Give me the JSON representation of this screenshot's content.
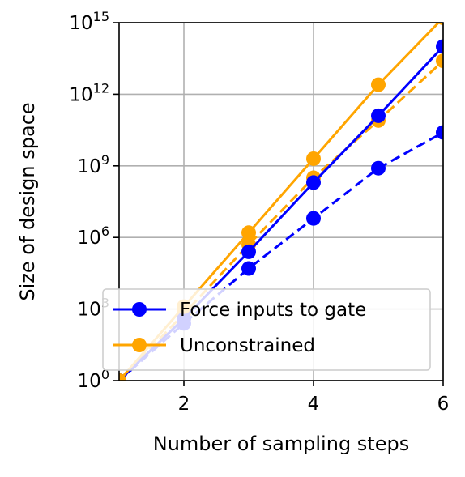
{
  "chart_data": {
    "type": "line",
    "xlabel": "Number of sampling steps",
    "ylabel": "Size of design space",
    "xlim": [
      1,
      6
    ],
    "ylim_log10": [
      0,
      15
    ],
    "y_scale": "log",
    "grid": true,
    "x_ticks": [
      2,
      4,
      6
    ],
    "y_ticks": [
      {
        "base": "10",
        "exp": "0"
      },
      {
        "base": "10",
        "exp": "3"
      },
      {
        "base": "10",
        "exp": "6"
      },
      {
        "base": "10",
        "exp": "9"
      },
      {
        "base": "10",
        "exp": "12"
      },
      {
        "base": "10",
        "exp": "15"
      }
    ],
    "legend_position": "lower-right",
    "legend": [
      {
        "label": "Force inputs to gate",
        "color": "#0000ff"
      },
      {
        "label": "Unconstrained",
        "color": "#ffa500"
      }
    ],
    "series": [
      {
        "name": "Force inputs to gate",
        "style": "solid",
        "color": "#0000ff",
        "x": [
          1,
          2,
          3,
          4,
          5,
          6
        ],
        "y_log10": [
          0,
          2.6,
          5.4,
          8.3,
          11.1,
          14.0
        ]
      },
      {
        "name": "Force inputs to gate",
        "style": "dashed",
        "color": "#0000ff",
        "x": [
          1,
          2,
          3,
          4,
          5,
          6
        ],
        "y_log10": [
          0,
          2.4,
          4.7,
          6.8,
          8.9,
          10.4
        ]
      },
      {
        "name": "Unconstrained",
        "style": "solid",
        "color": "#ffa500",
        "x": [
          1,
          2,
          3,
          4,
          5,
          6
        ],
        "y_log10": [
          0,
          3.1,
          6.2,
          9.3,
          12.4,
          15.2
        ]
      },
      {
        "name": "Unconstrained",
        "style": "dashed",
        "color": "#ffa500",
        "x": [
          1,
          2,
          3,
          4,
          5,
          6
        ],
        "y_log10": [
          0,
          2.8,
          5.7,
          8.5,
          10.9,
          13.4
        ]
      }
    ]
  }
}
